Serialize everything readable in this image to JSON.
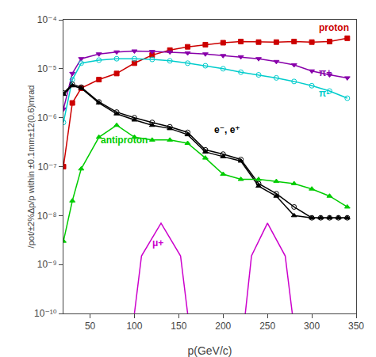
{
  "chart_data": {
    "type": "line",
    "xlabel": "p(GeV/c)",
    "ylabel": "/pot/±2%Δp/p within ±0.1mm±12(0.6)mrad",
    "xlim": [
      20,
      350
    ],
    "ylim": [
      1e-10,
      0.0001
    ],
    "xticks": [
      50,
      100,
      150,
      200,
      250,
      300,
      350
    ],
    "yticks": [
      {
        "value": 1e-10,
        "label": "10⁻¹⁰"
      },
      {
        "value": 1e-09,
        "label": "10⁻⁹"
      },
      {
        "value": 1e-08,
        "label": "10⁻⁸"
      },
      {
        "value": 1e-07,
        "label": "10⁻⁷"
      },
      {
        "value": 1e-06,
        "label": "10⁻⁶"
      },
      {
        "value": 1e-05,
        "label": "10⁻⁵"
      },
      {
        "value": 0.0001,
        "label": "10⁻⁴"
      }
    ],
    "log": "y",
    "grid": false,
    "series": [
      {
        "color": "#cc0000",
        "marker": "square",
        "x": [
          20,
          30,
          40,
          60,
          80,
          100,
          120,
          140,
          160,
          180,
          200,
          220,
          240,
          260,
          280,
          300,
          320,
          340
        ],
        "values": [
          1e-07,
          2e-06,
          4e-06,
          6e-06,
          8e-06,
          1.3e-05,
          1.9e-05,
          2.4e-05,
          2.8e-05,
          3.1e-05,
          3.4e-05,
          3.6e-05,
          3.5e-05,
          3.5e-05,
          3.6e-05,
          3.5e-05,
          3.6e-05,
          4.2e-05
        ]
      },
      {
        "color": "#8800aa",
        "marker": "triangle-down",
        "x": [
          20,
          30,
          40,
          60,
          80,
          100,
          120,
          140,
          160,
          180,
          200,
          220,
          240,
          260,
          280,
          300,
          320,
          340
        ],
        "values": [
          1.5e-06,
          8e-06,
          1.6e-05,
          2e-05,
          2.2e-05,
          2.3e-05,
          2.25e-05,
          2.2e-05,
          2.1e-05,
          2e-05,
          1.85e-05,
          1.75e-05,
          1.6e-05,
          1.4e-05,
          1.2e-05,
          9e-06,
          7.5e-06,
          6.5e-06
        ]
      },
      {
        "color": "#00cccc",
        "marker": "circle-open",
        "x": [
          20,
          30,
          40,
          60,
          80,
          100,
          120,
          140,
          160,
          180,
          200,
          220,
          240,
          260,
          280,
          300,
          320,
          340
        ],
        "values": [
          8e-07,
          6e-06,
          1.3e-05,
          1.5e-05,
          1.6e-05,
          1.6e-05,
          1.55e-05,
          1.45e-05,
          1.3e-05,
          1.15e-05,
          1e-05,
          8.5e-06,
          7.5e-06,
          6.5e-06,
          5.5e-06,
          4.5e-06,
          3.5e-06,
          2.5e-06
        ]
      },
      {
        "color": "#000000",
        "marker": "triangle-up",
        "x": [
          20,
          30,
          40,
          60,
          80,
          100,
          120,
          140,
          160,
          180,
          200,
          220,
          240,
          260,
          280,
          300,
          310,
          320,
          330,
          340
        ],
        "values": [
          3e-06,
          4.5e-06,
          4e-06,
          2e-06,
          1.2e-06,
          9e-07,
          7e-07,
          6e-07,
          4.5e-07,
          2e-07,
          1.6e-07,
          1.3e-07,
          4e-08,
          2.5e-08,
          1e-08,
          9e-09,
          9e-09,
          9e-09,
          9e-09,
          9e-09
        ]
      },
      {
        "color": "#000000",
        "marker": "circle-open",
        "x": [
          20,
          30,
          40,
          60,
          80,
          100,
          120,
          140,
          160,
          180,
          200,
          220,
          240,
          260,
          280,
          300,
          310,
          320,
          330,
          340
        ],
        "values": [
          3.2e-06,
          4.8e-06,
          4.2e-06,
          2.1e-06,
          1.3e-06,
          1e-06,
          8e-07,
          6.5e-07,
          5e-07,
          2.2e-07,
          1.8e-07,
          1.4e-07,
          4.5e-08,
          2.8e-08,
          1.5e-08,
          9e-09,
          9e-09,
          9e-09,
          9e-09,
          9e-09
        ]
      },
      {
        "color": "#00cc00",
        "marker": "triangle-up",
        "x": [
          20,
          30,
          40,
          60,
          80,
          100,
          120,
          140,
          160,
          180,
          200,
          220,
          240,
          260,
          280,
          300,
          320,
          340
        ],
        "values": [
          3e-09,
          2e-08,
          9e-08,
          4e-07,
          7e-07,
          4e-07,
          3.5e-07,
          3.5e-07,
          3e-07,
          1.5e-07,
          7e-08,
          5.5e-08,
          5.5e-08,
          5e-08,
          4.5e-08,
          3.5e-08,
          2.5e-08,
          1.5e-08
        ]
      },
      {
        "color": "#cc00cc",
        "marker": "none",
        "x": [
          100,
          108,
          130,
          152,
          160
        ],
        "values": [
          1e-10,
          1.5e-09,
          7e-09,
          1.5e-09,
          1e-10
        ]
      },
      {
        "color": "#cc00cc",
        "marker": "none",
        "x": [
          225,
          232,
          250,
          270,
          278
        ],
        "values": [
          1e-10,
          1.5e-09,
          7e-09,
          1.5e-09,
          1e-10
        ]
      }
    ],
    "annotations": [
      {
        "text": "proton",
        "x": 306,
        "y": 5e-05,
        "color": "#cc0000"
      },
      {
        "text": "π+",
        "x": 306,
        "y": 6e-06,
        "color": "#8800aa"
      },
      {
        "text": "π-",
        "x": 306,
        "y": 2.2e-06,
        "color": "#00cccc"
      },
      {
        "text": "e⁻, e⁺",
        "x": 188,
        "y": 4e-07,
        "color": "#000000"
      },
      {
        "text": "antiproton",
        "x": 60,
        "y": 2.5e-07,
        "color": "#00cc00"
      },
      {
        "text": "μ+",
        "x": 118,
        "y": 2e-09,
        "color": "#cc00cc"
      }
    ]
  }
}
